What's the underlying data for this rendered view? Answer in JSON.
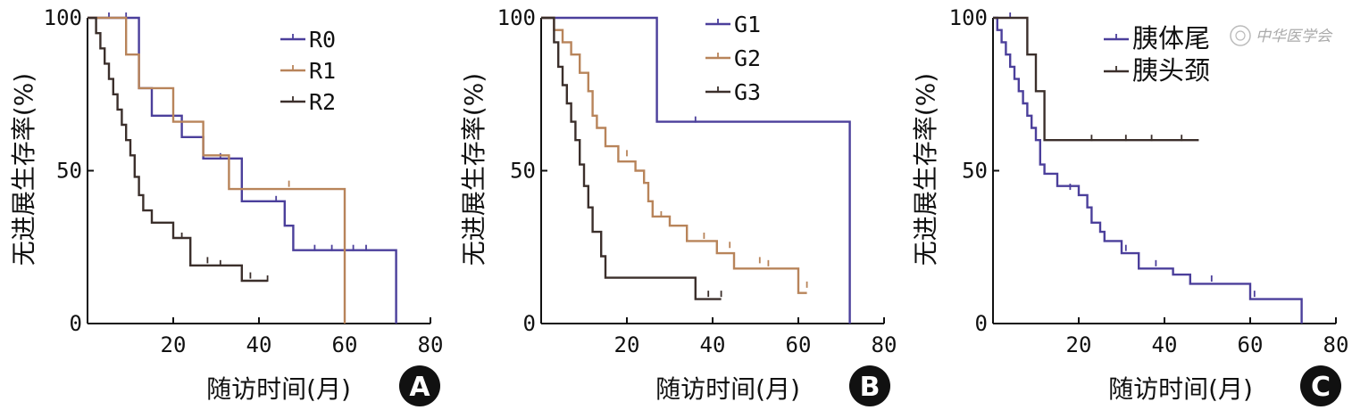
{
  "colors": {
    "blue": "#4b3f9b",
    "tan": "#b8845a",
    "dark": "#3b2f2b",
    "axis": "#111111"
  },
  "watermark": "中华医学会",
  "chart_data": [
    {
      "type": "line",
      "panel": "A",
      "xlabel": "随访时间(月)",
      "ylabel": "无进展生存率(%)",
      "xlim": [
        0,
        80
      ],
      "ylim": [
        0,
        100
      ],
      "xticks": [
        20,
        40,
        60,
        80
      ],
      "yticks": [
        0,
        50,
        100
      ],
      "legend_position": "top-right",
      "series": [
        {
          "name": "R0",
          "color": "blue",
          "steps": [
            [
              0,
              100
            ],
            [
              12,
              100
            ],
            [
              12,
              77
            ],
            [
              15,
              77
            ],
            [
              15,
              68
            ],
            [
              22,
              68
            ],
            [
              22,
              61
            ],
            [
              27,
              61
            ],
            [
              27,
              54
            ],
            [
              36,
              54
            ],
            [
              36,
              40
            ],
            [
              46,
              40
            ],
            [
              46,
              32
            ],
            [
              48,
              32
            ],
            [
              48,
              24
            ],
            [
              72,
              24
            ],
            [
              72,
              0
            ]
          ],
          "censors": [
            [
              5,
              100
            ],
            [
              9,
              100
            ],
            [
              31,
              54
            ],
            [
              44,
              40
            ],
            [
              53,
              24
            ],
            [
              57,
              24
            ],
            [
              62,
              24
            ],
            [
              65,
              24
            ]
          ]
        },
        {
          "name": "R1",
          "color": "tan",
          "steps": [
            [
              0,
              100
            ],
            [
              9,
              100
            ],
            [
              9,
              88
            ],
            [
              12,
              88
            ],
            [
              12,
              77
            ],
            [
              20,
              77
            ],
            [
              20,
              66
            ],
            [
              27,
              66
            ],
            [
              27,
              55
            ],
            [
              33,
              55
            ],
            [
              33,
              44
            ],
            [
              60,
              44
            ],
            [
              60,
              0
            ]
          ],
          "censors": [
            [
              47,
              45
            ]
          ]
        },
        {
          "name": "R2",
          "color": "dark",
          "steps": [
            [
              0,
              100
            ],
            [
              2,
              100
            ],
            [
              2,
              95
            ],
            [
              3,
              95
            ],
            [
              3,
              90
            ],
            [
              4,
              90
            ],
            [
              4,
              85
            ],
            [
              5,
              85
            ],
            [
              5,
              80
            ],
            [
              6,
              80
            ],
            [
              6,
              75
            ],
            [
              7,
              75
            ],
            [
              7,
              70
            ],
            [
              8,
              70
            ],
            [
              8,
              65
            ],
            [
              9,
              65
            ],
            [
              9,
              60
            ],
            [
              10,
              60
            ],
            [
              10,
              55
            ],
            [
              11,
              55
            ],
            [
              11,
              48
            ],
            [
              12,
              48
            ],
            [
              12,
              42
            ],
            [
              13,
              42
            ],
            [
              13,
              37
            ],
            [
              15,
              37
            ],
            [
              15,
              33
            ],
            [
              20,
              33
            ],
            [
              20,
              28
            ],
            [
              24,
              28
            ],
            [
              24,
              19
            ],
            [
              36,
              19
            ],
            [
              36,
              14
            ],
            [
              42,
              14
            ]
          ],
          "censors": [
            [
              10,
              57
            ],
            [
              22,
              28
            ],
            [
              28,
              20
            ],
            [
              31,
              19
            ],
            [
              38,
              15
            ],
            [
              42,
              14
            ]
          ]
        }
      ]
    },
    {
      "type": "line",
      "panel": "B",
      "xlabel": "随访时间(月)",
      "ylabel": "无进展生存率(%)",
      "xlim": [
        0,
        80
      ],
      "ylim": [
        0,
        100
      ],
      "xticks": [
        20,
        40,
        60,
        80
      ],
      "yticks": [
        0,
        50,
        100
      ],
      "legend_position": "top-right",
      "series": [
        {
          "name": "G1",
          "color": "blue",
          "steps": [
            [
              0,
              100
            ],
            [
              27,
              100
            ],
            [
              27,
              66
            ],
            [
              72,
              66
            ],
            [
              72,
              0
            ]
          ],
          "censors": [
            [
              36,
              66
            ]
          ]
        },
        {
          "name": "G2",
          "color": "tan",
          "steps": [
            [
              0,
              100
            ],
            [
              3,
              100
            ],
            [
              3,
              96
            ],
            [
              5,
              96
            ],
            [
              5,
              92
            ],
            [
              7,
              92
            ],
            [
              7,
              88
            ],
            [
              9,
              88
            ],
            [
              9,
              82
            ],
            [
              11,
              82
            ],
            [
              11,
              76
            ],
            [
              12,
              76
            ],
            [
              12,
              68
            ],
            [
              13,
              68
            ],
            [
              13,
              64
            ],
            [
              15,
              64
            ],
            [
              15,
              58
            ],
            [
              18,
              58
            ],
            [
              18,
              53
            ],
            [
              22,
              53
            ],
            [
              22,
              50
            ],
            [
              24,
              50
            ],
            [
              24,
              46
            ],
            [
              25,
              46
            ],
            [
              25,
              40
            ],
            [
              26,
              40
            ],
            [
              26,
              35
            ],
            [
              30,
              35
            ],
            [
              30,
              32
            ],
            [
              34,
              32
            ],
            [
              34,
              27
            ],
            [
              41,
              27
            ],
            [
              41,
              23
            ],
            [
              45,
              23
            ],
            [
              45,
              18
            ],
            [
              60,
              18
            ],
            [
              60,
              10
            ],
            [
              62,
              10
            ]
          ],
          "censors": [
            [
              20,
              55
            ],
            [
              28,
              35
            ],
            [
              38,
              28
            ],
            [
              44,
              25
            ],
            [
              51,
              20
            ],
            [
              53,
              19
            ],
            [
              62,
              12
            ]
          ]
        },
        {
          "name": "G3",
          "color": "dark",
          "steps": [
            [
              0,
              100
            ],
            [
              3,
              100
            ],
            [
              3,
              92
            ],
            [
              4,
              92
            ],
            [
              4,
              84
            ],
            [
              5,
              84
            ],
            [
              5,
              78
            ],
            [
              6,
              78
            ],
            [
              6,
              72
            ],
            [
              7,
              72
            ],
            [
              7,
              66
            ],
            [
              8,
              66
            ],
            [
              8,
              60
            ],
            [
              9,
              60
            ],
            [
              9,
              52
            ],
            [
              10,
              52
            ],
            [
              10,
              45
            ],
            [
              11,
              45
            ],
            [
              11,
              38
            ],
            [
              12,
              38
            ],
            [
              12,
              30
            ],
            [
              14,
              30
            ],
            [
              14,
              22
            ],
            [
              15,
              22
            ],
            [
              15,
              15
            ],
            [
              36,
              15
            ],
            [
              36,
              8
            ],
            [
              42,
              8
            ]
          ],
          "censors": [
            [
              39,
              9
            ],
            [
              42,
              9
            ]
          ]
        }
      ]
    },
    {
      "type": "line",
      "panel": "C",
      "xlabel": "随访时间(月)",
      "ylabel": "无进展生存率(%)",
      "xlim": [
        0,
        80
      ],
      "ylim": [
        0,
        100
      ],
      "xticks": [
        20,
        40,
        60,
        80
      ],
      "yticks": [
        0,
        50,
        100
      ],
      "legend_position": "top-right",
      "series": [
        {
          "name": "胰体尾",
          "color": "blue",
          "steps": [
            [
              0,
              100
            ],
            [
              1,
              100
            ],
            [
              1,
              96
            ],
            [
              2,
              96
            ],
            [
              2,
              92
            ],
            [
              3,
              92
            ],
            [
              3,
              88
            ],
            [
              4,
              88
            ],
            [
              4,
              84
            ],
            [
              5,
              84
            ],
            [
              5,
              80
            ],
            [
              6,
              80
            ],
            [
              6,
              76
            ],
            [
              7,
              76
            ],
            [
              7,
              72
            ],
            [
              8,
              72
            ],
            [
              8,
              68
            ],
            [
              9,
              68
            ],
            [
              9,
              64
            ],
            [
              10,
              64
            ],
            [
              10,
              60
            ],
            [
              11,
              60
            ],
            [
              11,
              52
            ],
            [
              12,
              52
            ],
            [
              12,
              49
            ],
            [
              15,
              49
            ],
            [
              15,
              45
            ],
            [
              20,
              45
            ],
            [
              20,
              42
            ],
            [
              22,
              42
            ],
            [
              22,
              38
            ],
            [
              23,
              38
            ],
            [
              23,
              33
            ],
            [
              25,
              33
            ],
            [
              25,
              30
            ],
            [
              26,
              30
            ],
            [
              26,
              27
            ],
            [
              30,
              27
            ],
            [
              30,
              23
            ],
            [
              34,
              23
            ],
            [
              34,
              18
            ],
            [
              42,
              18
            ],
            [
              42,
              16
            ],
            [
              46,
              16
            ],
            [
              46,
              13
            ],
            [
              60,
              13
            ],
            [
              60,
              8
            ],
            [
              72,
              8
            ],
            [
              72,
              0
            ]
          ],
          "censors": [
            [
              4,
              100
            ],
            [
              18,
              44
            ],
            [
              31,
              24
            ],
            [
              38,
              19
            ],
            [
              51,
              14
            ],
            [
              61,
              9
            ]
          ]
        },
        {
          "name": "胰头颈",
          "color": "dark",
          "steps": [
            [
              0,
              100
            ],
            [
              8,
              100
            ],
            [
              8,
              88
            ],
            [
              10,
              88
            ],
            [
              10,
              76
            ],
            [
              12,
              76
            ],
            [
              12,
              60
            ],
            [
              48,
              60
            ]
          ],
          "censors": [
            [
              23,
              60
            ],
            [
              31,
              60
            ],
            [
              37,
              60
            ],
            [
              44,
              60
            ]
          ]
        }
      ]
    }
  ]
}
